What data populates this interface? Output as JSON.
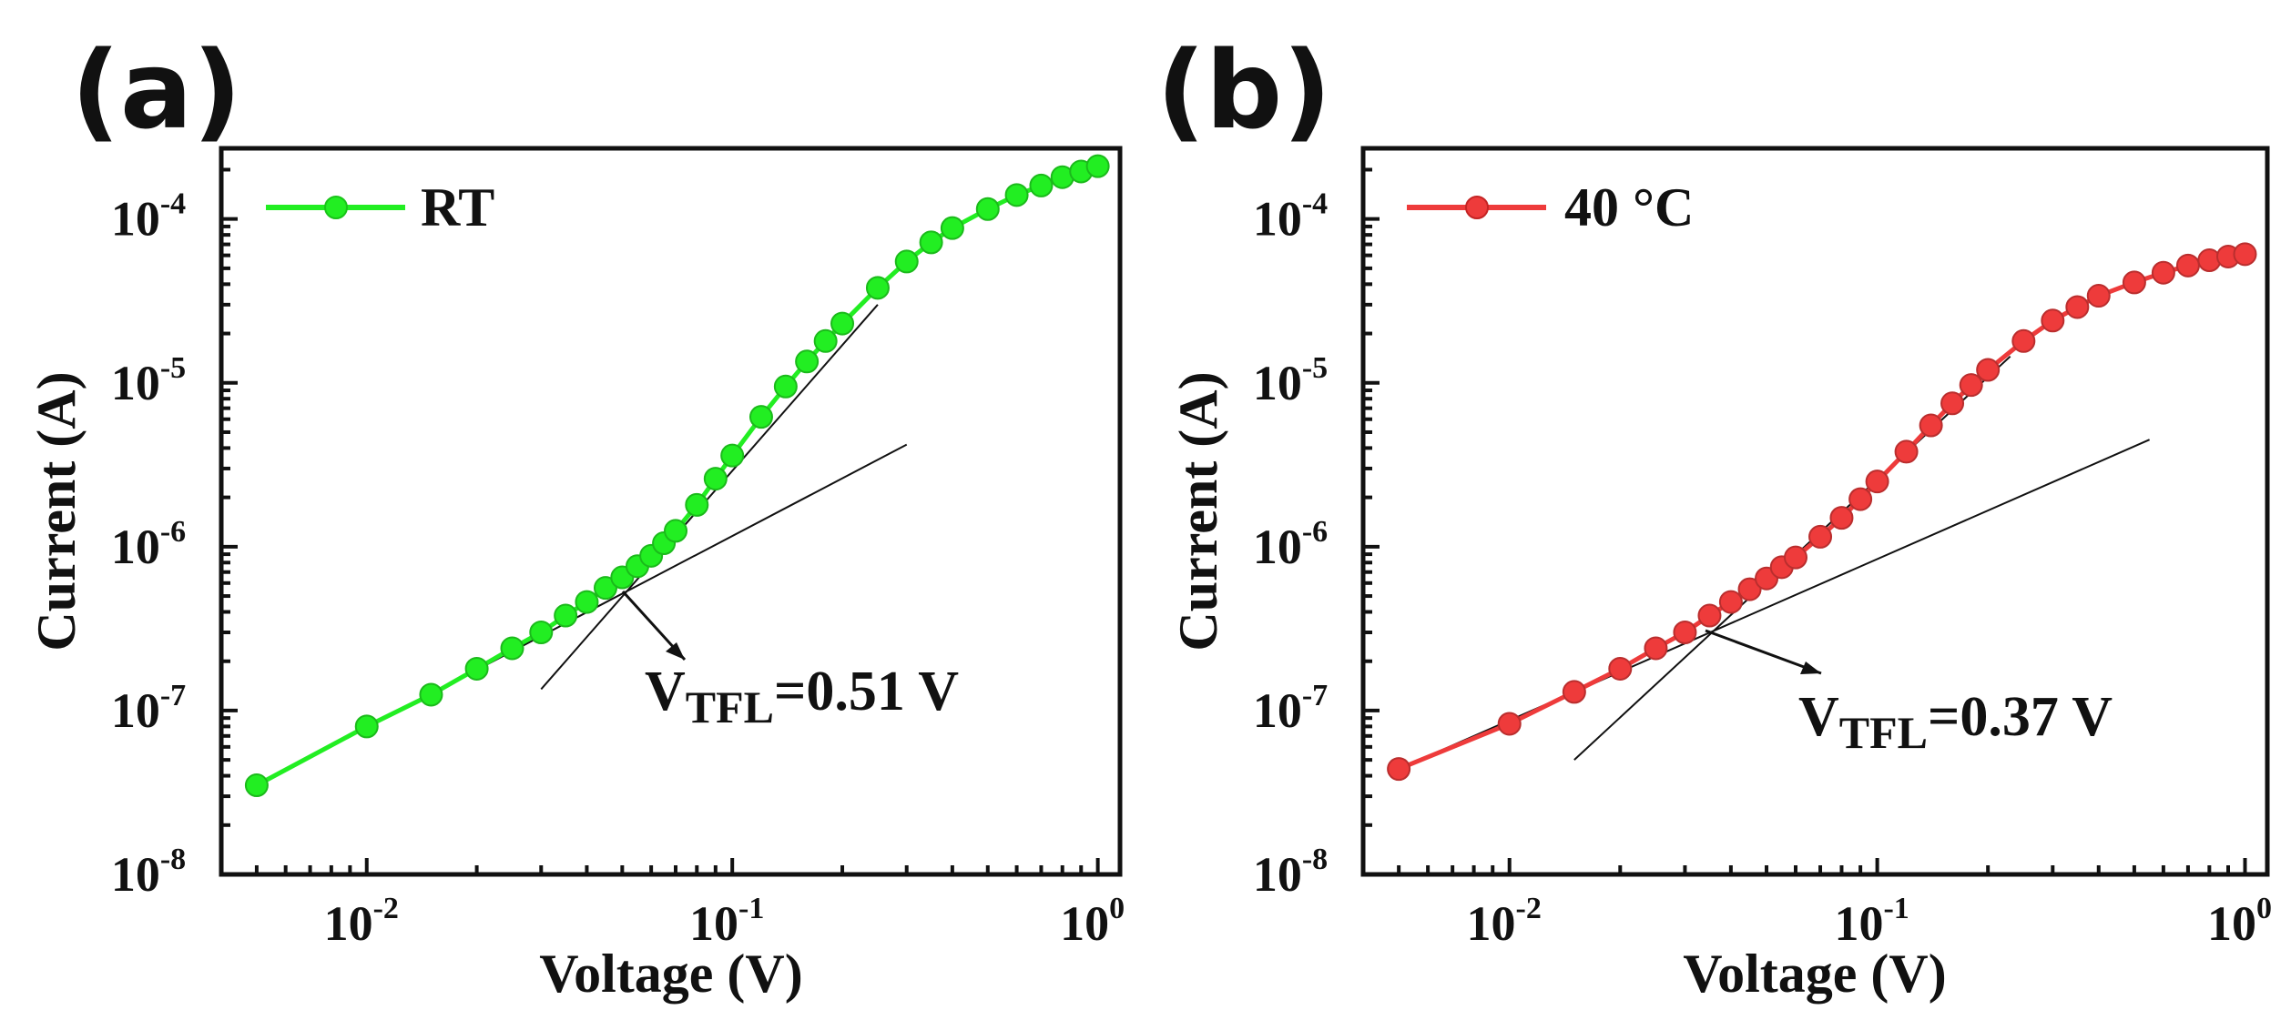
{
  "chart_data": [
    {
      "type": "scatter",
      "panel_label": "(a)",
      "xscale": "log",
      "yscale": "log",
      "xlim": [
        0.004,
        1.15
      ],
      "ylim": [
        1e-08,
        0.00027
      ],
      "xlabel": "Voltage (V)",
      "ylabel": "Current (A)",
      "xticks": [
        {
          "value": 0.01,
          "base": "10",
          "exp": "-2"
        },
        {
          "value": 0.1,
          "base": "10",
          "exp": "-1"
        },
        {
          "value": 1,
          "base": "10",
          "exp": "0"
        }
      ],
      "yticks": [
        {
          "value": 1e-08,
          "base": "10",
          "exp": "-8"
        },
        {
          "value": 1e-07,
          "base": "10",
          "exp": "-7"
        },
        {
          "value": 1e-06,
          "base": "10",
          "exp": "-6"
        },
        {
          "value": 1e-05,
          "base": "10",
          "exp": "-5"
        },
        {
          "value": 0.0001,
          "base": "10",
          "exp": "-4"
        }
      ],
      "legend": {
        "label": "RT",
        "position": "top-left"
      },
      "color": "#22ee22",
      "series": [
        {
          "name": "RT",
          "x": [
            0.005,
            0.01,
            0.015,
            0.02,
            0.025,
            0.03,
            0.035,
            0.04,
            0.045,
            0.05,
            0.055,
            0.06,
            0.065,
            0.07,
            0.08,
            0.09,
            0.1,
            0.12,
            0.14,
            0.16,
            0.18,
            0.2,
            0.25,
            0.3,
            0.35,
            0.4,
            0.5,
            0.6,
            0.7,
            0.8,
            0.9,
            1.0
          ],
          "y": [
            3.5e-08,
            8e-08,
            1.25e-07,
            1.8e-07,
            2.4e-07,
            3e-07,
            3.8e-07,
            4.6e-07,
            5.6e-07,
            6.5e-07,
            7.6e-07,
            8.8e-07,
            1.05e-06,
            1.25e-06,
            1.8e-06,
            2.6e-06,
            3.6e-06,
            6.2e-06,
            9.5e-06,
            1.35e-05,
            1.8e-05,
            2.3e-05,
            3.8e-05,
            5.5e-05,
            7.2e-05,
            8.8e-05,
            0.000115,
            0.00014,
            0.00016,
            0.00018,
            0.000195,
            0.00021
          ]
        }
      ],
      "fit_lines": [
        {
          "from": [
            0.005,
            3.5e-08
          ],
          "to": [
            0.3,
            4.2e-06
          ]
        },
        {
          "from": [
            0.03,
            1.35e-07
          ],
          "to": [
            0.25,
            3e-05
          ]
        }
      ],
      "annotation": {
        "prefix": "V",
        "subscript": "TFL",
        "suffix": "=0.51 V",
        "x": 0.052,
        "y": 5.5e-07
      }
    },
    {
      "type": "scatter",
      "panel_label": "(b)",
      "xscale": "log",
      "yscale": "log",
      "xlim": [
        0.004,
        1.15
      ],
      "ylim": [
        1e-08,
        0.00027
      ],
      "xlabel": "Voltage (V)",
      "ylabel": "Current (A)",
      "xticks": [
        {
          "value": 0.01,
          "base": "10",
          "exp": "-2"
        },
        {
          "value": 0.1,
          "base": "10",
          "exp": "-1"
        },
        {
          "value": 1,
          "base": "10",
          "exp": "0"
        }
      ],
      "yticks": [
        {
          "value": 1e-08,
          "base": "10",
          "exp": "-8"
        },
        {
          "value": 1e-07,
          "base": "10",
          "exp": "-7"
        },
        {
          "value": 1e-06,
          "base": "10",
          "exp": "-6"
        },
        {
          "value": 1e-05,
          "base": "10",
          "exp": "-5"
        },
        {
          "value": 0.0001,
          "base": "10",
          "exp": "-4"
        }
      ],
      "legend": {
        "label": "40 °C",
        "position": "top-left"
      },
      "color": "#ee3b3b",
      "series": [
        {
          "name": "40 °C",
          "x": [
            0.005,
            0.01,
            0.015,
            0.02,
            0.025,
            0.03,
            0.035,
            0.04,
            0.045,
            0.05,
            0.055,
            0.06,
            0.07,
            0.08,
            0.09,
            0.1,
            0.12,
            0.14,
            0.16,
            0.18,
            0.2,
            0.25,
            0.3,
            0.35,
            0.4,
            0.5,
            0.6,
            0.7,
            0.8,
            0.9,
            1.0
          ],
          "y": [
            4.4e-08,
            8.3e-08,
            1.3e-07,
            1.8e-07,
            2.4e-07,
            3e-07,
            3.8e-07,
            4.6e-07,
            5.5e-07,
            6.4e-07,
            7.5e-07,
            8.6e-07,
            1.15e-06,
            1.5e-06,
            1.95e-06,
            2.5e-06,
            3.8e-06,
            5.5e-06,
            7.5e-06,
            9.7e-06,
            1.2e-05,
            1.8e-05,
            2.4e-05,
            2.9e-05,
            3.4e-05,
            4.1e-05,
            4.7e-05,
            5.2e-05,
            5.6e-05,
            5.9e-05,
            6.1e-05
          ]
        }
      ],
      "fit_lines": [
        {
          "from": [
            0.005,
            4.4e-08
          ],
          "to": [
            0.55,
            4.5e-06
          ]
        },
        {
          "from": [
            0.015,
            5e-08
          ],
          "to": [
            0.23,
            1.45e-05
          ]
        }
      ],
      "annotation": {
        "prefix": "V",
        "subscript": "TFL",
        "suffix": "=0.37 V",
        "x": 0.038,
        "y": 3.2e-07
      }
    }
  ]
}
